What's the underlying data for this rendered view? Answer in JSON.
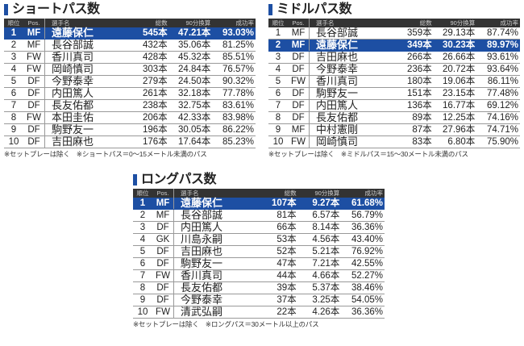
{
  "headers": [
    "順位",
    "Pos.",
    "選手名",
    "総数",
    "90分換算",
    "成功率"
  ],
  "tables": [
    {
      "title": "ショートパス数",
      "highlight": 0,
      "note": "※セットプレーは除く　※ショートパス＝0〜15メートル未満のパス",
      "rows": [
        [
          "1",
          "MF",
          "遠藤保仁",
          "545本",
          "47.21本",
          "93.03%"
        ],
        [
          "2",
          "MF",
          "長谷部誠",
          "432本",
          "35.06本",
          "81.25%"
        ],
        [
          "3",
          "FW",
          "香川真司",
          "428本",
          "45.32本",
          "85.51%"
        ],
        [
          "4",
          "FW",
          "岡崎慎司",
          "303本",
          "24.84本",
          "76.57%"
        ],
        [
          "5",
          "DF",
          "今野泰幸",
          "279本",
          "24.50本",
          "90.32%"
        ],
        [
          "6",
          "DF",
          "内田篤人",
          "261本",
          "32.18本",
          "77.78%"
        ],
        [
          "7",
          "DF",
          "長友佑都",
          "238本",
          "32.75本",
          "83.61%"
        ],
        [
          "8",
          "FW",
          "本田圭佑",
          "206本",
          "42.33本",
          "83.98%"
        ],
        [
          "9",
          "DF",
          "駒野友一",
          "196本",
          "30.05本",
          "86.22%"
        ],
        [
          "10",
          "DF",
          "吉田麻也",
          "176本",
          "17.64本",
          "85.23%"
        ]
      ]
    },
    {
      "title": "ミドルパス数",
      "highlight": 1,
      "note": "※セットプレーは除く　※ミドルパス＝15〜30メートル未満のパス",
      "rows": [
        [
          "1",
          "MF",
          "長谷部誠",
          "359本",
          "29.13本",
          "87.74%"
        ],
        [
          "2",
          "MF",
          "遠藤保仁",
          "349本",
          "30.23本",
          "89.97%"
        ],
        [
          "3",
          "DF",
          "吉田麻也",
          "266本",
          "26.66本",
          "93.61%"
        ],
        [
          "4",
          "DF",
          "今野泰幸",
          "236本",
          "20.72本",
          "93.64%"
        ],
        [
          "5",
          "FW",
          "香川真司",
          "180本",
          "19.06本",
          "86.11%"
        ],
        [
          "6",
          "DF",
          "駒野友一",
          "151本",
          "23.15本",
          "77.48%"
        ],
        [
          "7",
          "DF",
          "内田篤人",
          "136本",
          "16.77本",
          "69.12%"
        ],
        [
          "8",
          "DF",
          "長友佑都",
          "89本",
          "12.25本",
          "74.16%"
        ],
        [
          "9",
          "MF",
          "中村憲剛",
          "87本",
          "27.96本",
          "74.71%"
        ],
        [
          "10",
          "FW",
          "岡崎慎司",
          "83本",
          "6.80本",
          "75.90%"
        ]
      ]
    },
    {
      "title": "ロングパス数",
      "highlight": 0,
      "note": "※セットプレーは除く　※ロングパス＝30メートル以上のパス",
      "rows": [
        [
          "1",
          "MF",
          "遠藤保仁",
          "107本",
          "9.27本",
          "61.68%"
        ],
        [
          "2",
          "MF",
          "長谷部誠",
          "81本",
          "6.57本",
          "56.79%"
        ],
        [
          "3",
          "DF",
          "内田篤人",
          "66本",
          "8.14本",
          "36.36%"
        ],
        [
          "4",
          "GK",
          "川島永嗣",
          "53本",
          "4.56本",
          "43.40%"
        ],
        [
          "5",
          "DF",
          "吉田麻也",
          "52本",
          "5.21本",
          "76.92%"
        ],
        [
          "6",
          "DF",
          "駒野友一",
          "47本",
          "7.21本",
          "42.55%"
        ],
        [
          "7",
          "FW",
          "香川真司",
          "44本",
          "4.66本",
          "52.27%"
        ],
        [
          "8",
          "DF",
          "長友佑都",
          "39本",
          "5.37本",
          "38.46%"
        ],
        [
          "9",
          "DF",
          "今野泰幸",
          "37本",
          "3.25本",
          "54.05%"
        ],
        [
          "10",
          "FW",
          "清武弘嗣",
          "22本",
          "4.26本",
          "36.36%"
        ]
      ]
    }
  ]
}
